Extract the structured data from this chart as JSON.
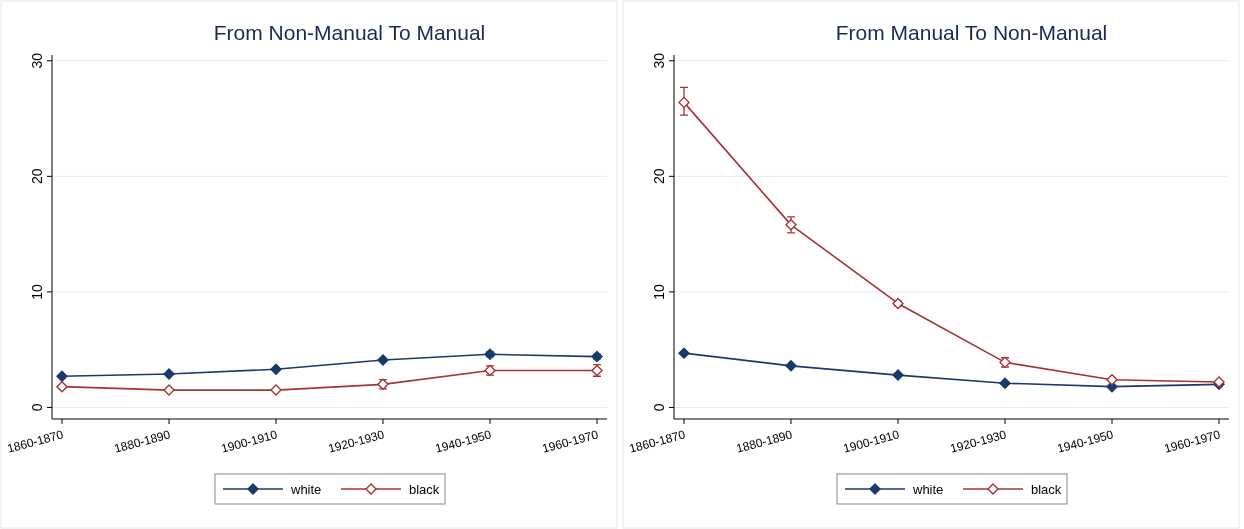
{
  "chart_data": [
    {
      "type": "line",
      "title": "From Non-Manual To Manual",
      "categories": [
        "1860-1870",
        "1880-1890",
        "1900-1910",
        "1920-1930",
        "1940-1950",
        "1960-1970"
      ],
      "series": [
        {
          "name": "white",
          "color": "#1a3a6b",
          "values": [
            2.7,
            2.9,
            3.3,
            4.1,
            4.6,
            4.4
          ],
          "errors": [
            null,
            null,
            null,
            null,
            0.2,
            0.2
          ]
        },
        {
          "name": "black",
          "color": "#a83232",
          "values": [
            1.8,
            1.5,
            1.5,
            2.0,
            3.2,
            3.2
          ],
          "errors": [
            null,
            null,
            null,
            0.4,
            0.4,
            0.5
          ]
        }
      ],
      "ylim": [
        -1,
        30.5
      ],
      "yticks": [
        0,
        10,
        20,
        30
      ],
      "grid": "y",
      "legend": "bottom",
      "marker": "diamond",
      "line_style": "solid"
    },
    {
      "type": "line",
      "title": "From Manual To Non-Manual",
      "categories": [
        "1860-1870",
        "1880-1890",
        "1900-1910",
        "1920-1930",
        "1940-1950",
        "1960-1970"
      ],
      "series": [
        {
          "name": "white",
          "color": "#1a3a6b",
          "values": [
            4.7,
            3.6,
            2.8,
            2.1,
            1.8,
            2.0
          ]
        },
        {
          "name": "black",
          "color": "#a83232",
          "values": [
            26.4,
            15.8,
            9.0,
            3.9,
            2.4,
            2.2
          ],
          "errors": [
            [
              25.3,
              27.7
            ],
            [
              15.1,
              16.5
            ],
            0.2,
            0.4,
            null,
            null
          ]
        }
      ],
      "ylim": [
        -1,
        30.5
      ],
      "yticks": [
        0,
        10,
        20,
        30
      ],
      "grid": "y",
      "legend": "bottom",
      "marker": "diamond",
      "line_style": "solid"
    }
  ]
}
